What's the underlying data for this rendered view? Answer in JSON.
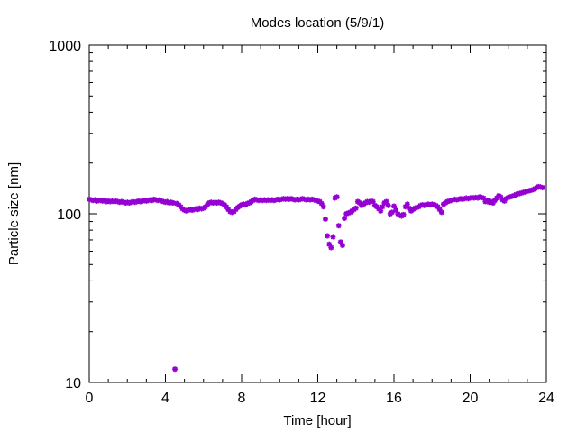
{
  "chart_data": {
    "type": "scatter",
    "title": "Modes location (5/9/1)",
    "xlabel": "Time [hour]",
    "ylabel": "Particle size [nm]",
    "xlim": [
      0,
      24
    ],
    "ylim": [
      10,
      1000
    ],
    "y_scale": "log",
    "x_ticks": [
      0,
      4,
      8,
      12,
      16,
      20,
      24
    ],
    "x_tick_labels": [
      "0",
      "4",
      "8",
      "12",
      "16",
      "20",
      "24"
    ],
    "y_ticks": [
      10,
      100,
      1000
    ],
    "y_tick_labels": [
      "10",
      "100",
      "1000"
    ],
    "grid": false,
    "legend": "none",
    "marker_color": "#9400d3",
    "marker": "star",
    "points": [
      [
        0.0,
        122
      ],
      [
        0.1,
        121
      ],
      [
        0.2,
        120
      ],
      [
        0.3,
        121
      ],
      [
        0.4,
        119
      ],
      [
        0.5,
        120
      ],
      [
        0.6,
        120
      ],
      [
        0.7,
        119
      ],
      [
        0.8,
        120
      ],
      [
        0.9,
        118
      ],
      [
        1.0,
        119
      ],
      [
        1.1,
        118
      ],
      [
        1.2,
        119
      ],
      [
        1.3,
        118
      ],
      [
        1.4,
        119
      ],
      [
        1.5,
        118
      ],
      [
        1.6,
        117
      ],
      [
        1.7,
        118
      ],
      [
        1.8,
        117
      ],
      [
        1.9,
        116
      ],
      [
        2.0,
        117
      ],
      [
        2.1,
        116
      ],
      [
        2.2,
        117
      ],
      [
        2.3,
        118
      ],
      [
        2.4,
        117
      ],
      [
        2.5,
        118
      ],
      [
        2.6,
        119
      ],
      [
        2.7,
        118
      ],
      [
        2.8,
        119
      ],
      [
        2.9,
        120
      ],
      [
        3.0,
        119
      ],
      [
        3.1,
        120
      ],
      [
        3.2,
        121
      ],
      [
        3.3,
        120
      ],
      [
        3.4,
        122
      ],
      [
        3.5,
        121
      ],
      [
        3.6,
        120
      ],
      [
        3.7,
        121
      ],
      [
        3.8,
        119
      ],
      [
        3.9,
        118
      ],
      [
        4.0,
        117
      ],
      [
        4.1,
        118
      ],
      [
        4.2,
        116
      ],
      [
        4.3,
        117
      ],
      [
        4.4,
        116
      ],
      [
        4.5,
        12
      ],
      [
        4.6,
        115
      ],
      [
        4.7,
        113
      ],
      [
        4.8,
        110
      ],
      [
        4.9,
        107
      ],
      [
        5.0,
        105
      ],
      [
        5.1,
        104
      ],
      [
        5.2,
        105
      ],
      [
        5.3,
        106
      ],
      [
        5.4,
        105
      ],
      [
        5.5,
        106
      ],
      [
        5.6,
        107
      ],
      [
        5.7,
        106
      ],
      [
        5.8,
        108
      ],
      [
        5.9,
        107
      ],
      [
        6.0,
        108
      ],
      [
        6.1,
        110
      ],
      [
        6.2,
        113
      ],
      [
        6.3,
        116
      ],
      [
        6.4,
        117
      ],
      [
        6.5,
        116
      ],
      [
        6.6,
        117
      ],
      [
        6.7,
        116
      ],
      [
        6.8,
        117
      ],
      [
        6.9,
        116
      ],
      [
        7.0,
        115
      ],
      [
        7.1,
        113
      ],
      [
        7.2,
        110
      ],
      [
        7.3,
        106
      ],
      [
        7.4,
        103
      ],
      [
        7.5,
        102
      ],
      [
        7.6,
        103
      ],
      [
        7.7,
        106
      ],
      [
        7.8,
        109
      ],
      [
        7.9,
        111
      ],
      [
        8.0,
        113
      ],
      [
        8.1,
        114
      ],
      [
        8.2,
        113
      ],
      [
        8.3,
        115
      ],
      [
        8.4,
        116
      ],
      [
        8.5,
        118
      ],
      [
        8.6,
        120
      ],
      [
        8.7,
        122
      ],
      [
        8.8,
        121
      ],
      [
        8.9,
        120
      ],
      [
        9.0,
        121
      ],
      [
        9.1,
        120
      ],
      [
        9.2,
        121
      ],
      [
        9.3,
        120
      ],
      [
        9.4,
        121
      ],
      [
        9.5,
        120
      ],
      [
        9.6,
        121
      ],
      [
        9.7,
        120
      ],
      [
        9.8,
        121
      ],
      [
        9.9,
        122
      ],
      [
        10.0,
        121
      ],
      [
        10.1,
        122
      ],
      [
        10.2,
        123
      ],
      [
        10.3,
        122
      ],
      [
        10.4,
        123
      ],
      [
        10.5,
        122
      ],
      [
        10.6,
        123
      ],
      [
        10.7,
        122
      ],
      [
        10.8,
        121
      ],
      [
        10.9,
        122
      ],
      [
        11.0,
        121
      ],
      [
        11.1,
        122
      ],
      [
        11.2,
        123
      ],
      [
        11.3,
        122
      ],
      [
        11.4,
        121
      ],
      [
        11.5,
        122
      ],
      [
        11.6,
        121
      ],
      [
        11.7,
        122
      ],
      [
        11.8,
        121
      ],
      [
        11.9,
        120
      ],
      [
        12.0,
        119
      ],
      [
        12.1,
        118
      ],
      [
        12.2,
        115
      ],
      [
        12.3,
        110
      ],
      [
        12.4,
        93
      ],
      [
        12.5,
        74
      ],
      [
        12.6,
        66
      ],
      [
        12.7,
        63
      ],
      [
        12.8,
        73
      ],
      [
        12.9,
        124
      ],
      [
        13.0,
        126
      ],
      [
        13.1,
        85
      ],
      [
        13.2,
        68
      ],
      [
        13.3,
        65
      ],
      [
        13.4,
        94
      ],
      [
        13.5,
        100
      ],
      [
        13.6,
        101
      ],
      [
        13.7,
        102
      ],
      [
        13.8,
        104
      ],
      [
        13.9,
        106
      ],
      [
        14.0,
        108
      ],
      [
        14.1,
        118
      ],
      [
        14.2,
        116
      ],
      [
        14.3,
        112
      ],
      [
        14.4,
        114
      ],
      [
        14.5,
        116
      ],
      [
        14.6,
        118
      ],
      [
        14.7,
        117
      ],
      [
        14.8,
        119
      ],
      [
        14.9,
        118
      ],
      [
        15.0,
        112
      ],
      [
        15.1,
        110
      ],
      [
        15.2,
        107
      ],
      [
        15.3,
        104
      ],
      [
        15.4,
        110
      ],
      [
        15.5,
        116
      ],
      [
        15.6,
        118
      ],
      [
        15.7,
        112
      ],
      [
        15.8,
        100
      ],
      [
        15.9,
        102
      ],
      [
        16.0,
        111
      ],
      [
        16.1,
        105
      ],
      [
        16.2,
        100
      ],
      [
        16.3,
        98
      ],
      [
        16.4,
        97
      ],
      [
        16.5,
        99
      ],
      [
        16.6,
        110
      ],
      [
        16.7,
        114
      ],
      [
        16.8,
        108
      ],
      [
        16.9,
        104
      ],
      [
        17.0,
        106
      ],
      [
        17.1,
        108
      ],
      [
        17.2,
        109
      ],
      [
        17.3,
        110
      ],
      [
        17.4,
        112
      ],
      [
        17.5,
        113
      ],
      [
        17.6,
        112
      ],
      [
        17.7,
        113
      ],
      [
        17.8,
        114
      ],
      [
        17.9,
        113
      ],
      [
        18.0,
        114
      ],
      [
        18.1,
        113
      ],
      [
        18.2,
        112
      ],
      [
        18.3,
        110
      ],
      [
        18.4,
        106
      ],
      [
        18.5,
        102
      ],
      [
        18.6,
        114
      ],
      [
        18.7,
        116
      ],
      [
        18.8,
        118
      ],
      [
        18.9,
        119
      ],
      [
        19.0,
        120
      ],
      [
        19.1,
        121
      ],
      [
        19.2,
        122
      ],
      [
        19.3,
        121
      ],
      [
        19.4,
        122
      ],
      [
        19.5,
        123
      ],
      [
        19.6,
        122
      ],
      [
        19.7,
        123
      ],
      [
        19.8,
        124
      ],
      [
        19.9,
        123
      ],
      [
        20.0,
        124
      ],
      [
        20.1,
        125
      ],
      [
        20.2,
        124
      ],
      [
        20.3,
        125
      ],
      [
        20.4,
        124
      ],
      [
        20.5,
        126
      ],
      [
        20.6,
        125
      ],
      [
        20.7,
        124
      ],
      [
        20.8,
        118
      ],
      [
        20.9,
        120
      ],
      [
        21.0,
        117
      ],
      [
        21.1,
        118
      ],
      [
        21.2,
        116
      ],
      [
        21.3,
        120
      ],
      [
        21.4,
        124
      ],
      [
        21.5,
        128
      ],
      [
        21.6,
        126
      ],
      [
        21.7,
        121
      ],
      [
        21.8,
        119
      ],
      [
        21.9,
        123
      ],
      [
        22.0,
        125
      ],
      [
        22.1,
        126
      ],
      [
        22.2,
        127
      ],
      [
        22.3,
        128
      ],
      [
        22.4,
        130
      ],
      [
        22.5,
        131
      ],
      [
        22.6,
        132
      ],
      [
        22.7,
        133
      ],
      [
        22.8,
        134
      ],
      [
        22.9,
        135
      ],
      [
        23.0,
        136
      ],
      [
        23.1,
        137
      ],
      [
        23.2,
        138
      ],
      [
        23.3,
        139
      ],
      [
        23.4,
        141
      ],
      [
        23.5,
        143
      ],
      [
        23.6,
        145
      ],
      [
        23.7,
        144
      ],
      [
        23.8,
        143
      ]
    ]
  }
}
